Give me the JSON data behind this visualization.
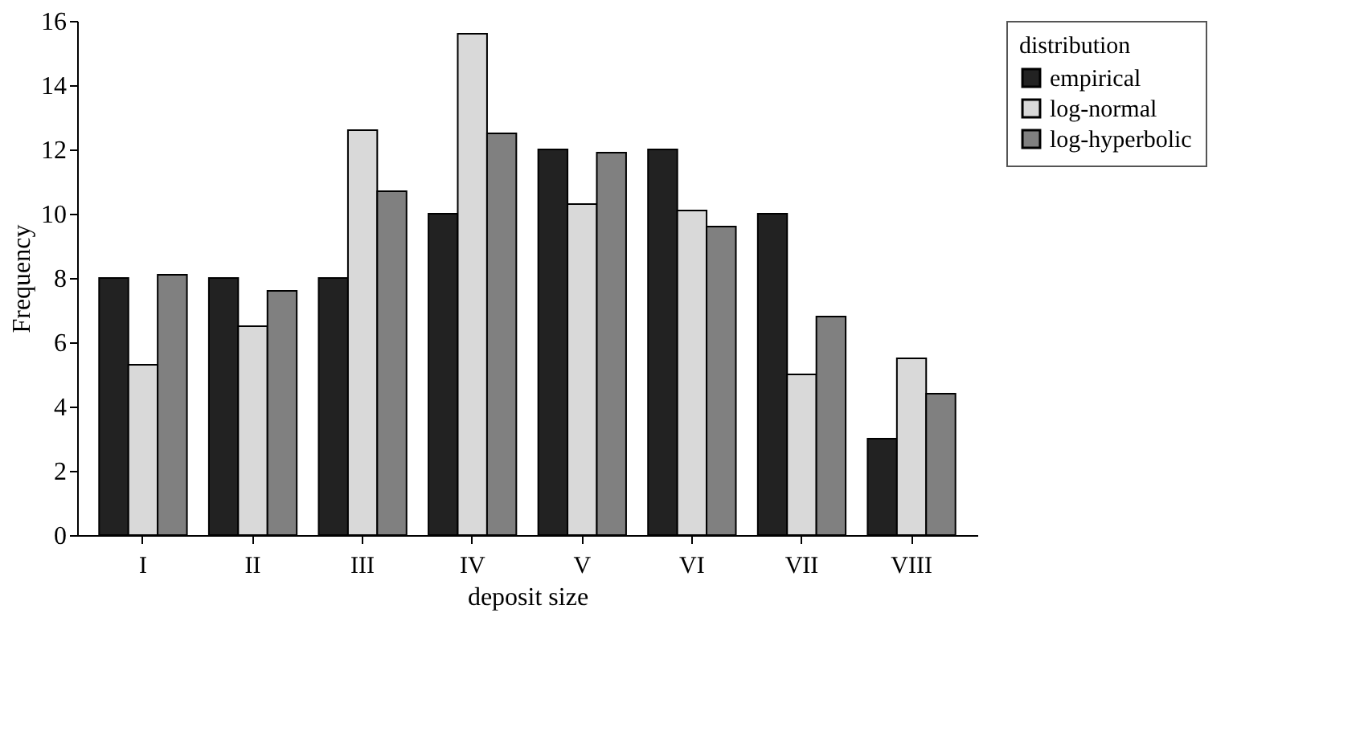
{
  "chart_data": {
    "type": "bar",
    "categories": [
      "I",
      "II",
      "III",
      "IV",
      "V",
      "VI",
      "VII",
      "VIII"
    ],
    "series": [
      {
        "name": "empirical",
        "color": "#222222",
        "values": [
          8,
          8,
          8,
          10,
          12,
          12,
          10,
          3
        ]
      },
      {
        "name": "log-normal",
        "color": "#d9d9d9",
        "values": [
          5.3,
          6.5,
          12.6,
          15.6,
          10.3,
          10.1,
          5.0,
          5.5
        ]
      },
      {
        "name": "log-hyperbolic",
        "color": "#808080",
        "values": [
          8.1,
          7.6,
          10.7,
          12.5,
          11.9,
          9.6,
          6.8,
          4.4
        ]
      }
    ],
    "xlabel": "deposit size",
    "ylabel": "Frequency",
    "legend_title": "distribution",
    "ylim": [
      0,
      16
    ],
    "yticks": [
      0,
      2,
      4,
      6,
      8,
      10,
      12,
      14,
      16
    ],
    "grid": false,
    "legend": "right"
  }
}
